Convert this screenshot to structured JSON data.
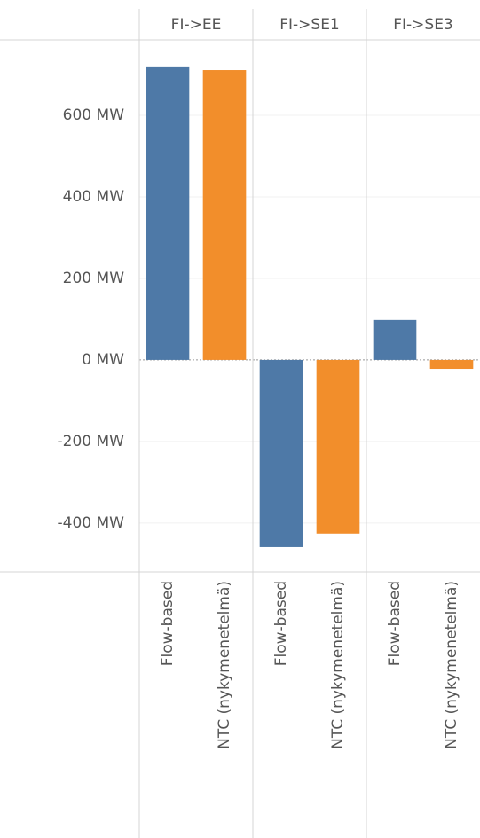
{
  "chart_data": {
    "type": "bar",
    "categories": [
      "FI->EE",
      "FI->SE1",
      "FI->SE3"
    ],
    "series": [
      {
        "name": "Flow-based",
        "color": "#4e79a7",
        "values": [
          720,
          -459,
          98
        ]
      },
      {
        "name": "NTC (nykymenetelmä)",
        "color": "#f28e2b",
        "values": [
          711,
          -426,
          -22
        ]
      }
    ],
    "ylim": [
      -520,
      785
    ],
    "yticks": [
      {
        "value": -400,
        "label": "-400 MW"
      },
      {
        "value": -200,
        "label": "-200 MW"
      },
      {
        "value": 0,
        "label": "0 MW"
      },
      {
        "value": 200,
        "label": "200 MW"
      },
      {
        "value": 400,
        "label": "400 MW"
      },
      {
        "value": 600,
        "label": "600 MW"
      }
    ],
    "grid": true
  }
}
